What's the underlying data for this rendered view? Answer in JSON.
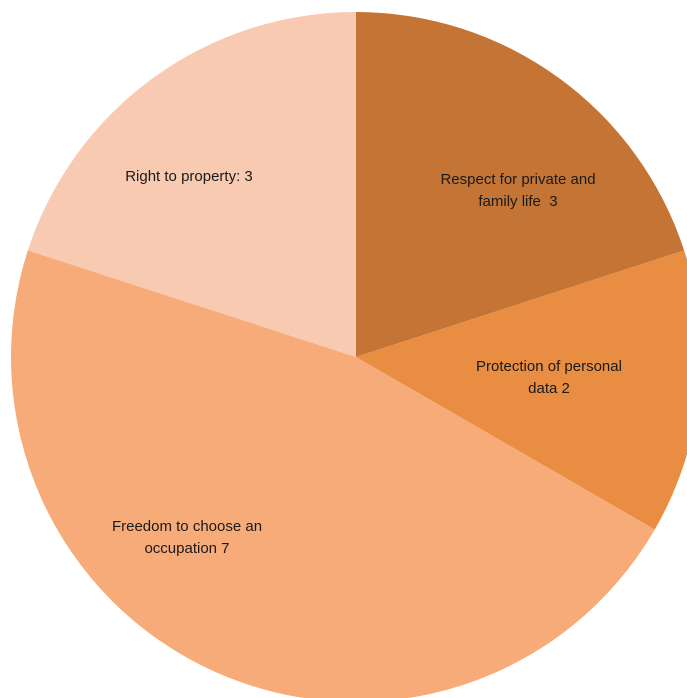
{
  "chart_data": {
    "type": "pie",
    "title": "",
    "start_angle_deg": 0,
    "direction": "clockwise",
    "legend": "none",
    "slices": [
      {
        "category": "Respect for private and family life",
        "value": 3,
        "label_lines": [
          "Respect for private and",
          "family life  3"
        ],
        "color": "#C47535"
      },
      {
        "category": "Protection of personal data",
        "value": 2,
        "label_lines": [
          "Protection of personal",
          "data 2"
        ],
        "color": "#E88D42"
      },
      {
        "category": "Freedom to choose an occupation",
        "value": 7,
        "label_lines": [
          "Freedom to choose an",
          "occupation 7"
        ],
        "color": "#F6AB78"
      },
      {
        "category": "Right to property",
        "value": 3,
        "label_lines": [
          "Right to property: 3"
        ],
        "color": "#F8CAB1"
      }
    ]
  }
}
